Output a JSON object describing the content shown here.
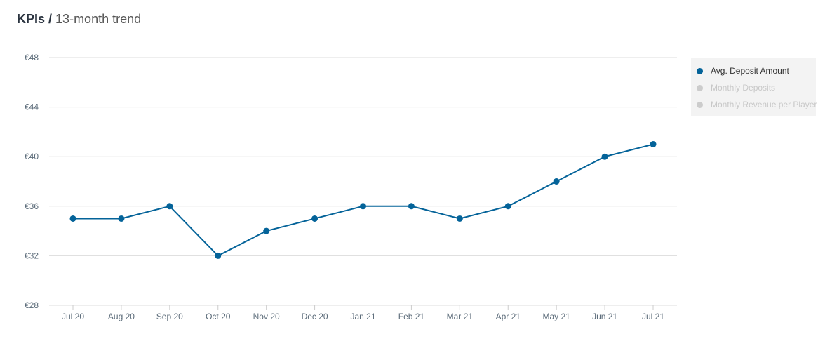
{
  "header": {
    "title_bold": "KPIs /",
    "title_rest": "13-month trend"
  },
  "chart_data": {
    "type": "line",
    "categories": [
      "Jul 20",
      "Aug 20",
      "Sep 20",
      "Oct 20",
      "Nov 20",
      "Dec 20",
      "Jan 21",
      "Feb 21",
      "Mar 21",
      "Apr 21",
      "May 21",
      "Jun 21",
      "Jul 21"
    ],
    "series": [
      {
        "name": "Avg. Deposit Amount",
        "values": [
          35,
          35,
          36,
          32,
          34,
          35,
          36,
          36,
          35,
          36,
          38,
          40,
          41
        ],
        "color": "#046399"
      }
    ],
    "yticks": [
      "€28",
      "€32",
      "€36",
      "€40",
      "€44",
      "€48"
    ],
    "ytick_values": [
      28,
      32,
      36,
      40,
      44,
      48
    ],
    "ylim": [
      28,
      48
    ],
    "grid": true,
    "legend_placement": "right"
  },
  "legend": {
    "items": [
      {
        "label": "Avg. Deposit Amount",
        "color": "#046399",
        "active": true
      },
      {
        "label": "Monthly Deposits",
        "color": "#cccccc",
        "active": false
      },
      {
        "label": "Monthly Revenue per Player",
        "color": "#cccccc",
        "active": false
      }
    ]
  }
}
